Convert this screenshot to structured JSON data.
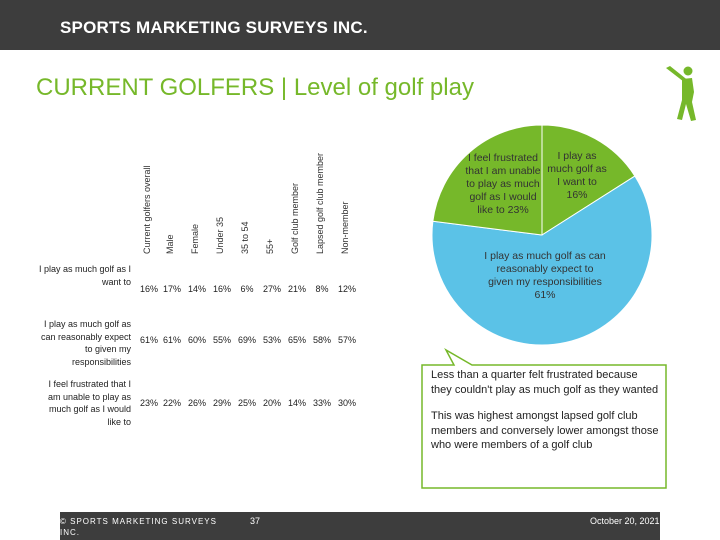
{
  "header": {
    "brand": "SPORTS MARKETING SURVEYS INC."
  },
  "title": "CURRENT GOLFERS  |  Level of golf play",
  "table": {
    "columns": [
      "Current golfers overall",
      "Male",
      "Female",
      "Under 35",
      "35 to 54",
      "55+",
      "Golf club member",
      "Lapsed golf club member",
      "Non-member"
    ],
    "rows": [
      {
        "label": "I play as much golf as I want to",
        "values": [
          "16%",
          "17%",
          "14%",
          "16%",
          "6%",
          "27%",
          "21%",
          "8%",
          "12%"
        ]
      },
      {
        "label": "I play as much golf as can reasonably expect to given my responsibilities",
        "values": [
          "61%",
          "61%",
          "60%",
          "55%",
          "69%",
          "53%",
          "65%",
          "58%",
          "57%"
        ]
      },
      {
        "label": "I feel frustrated that I am unable to play as much golf as I would like to",
        "values": [
          "23%",
          "22%",
          "26%",
          "29%",
          "25%",
          "20%",
          "14%",
          "33%",
          "30%"
        ]
      }
    ]
  },
  "chart_data": {
    "type": "pie",
    "categories": [
      "I play as much golf as I want to",
      "I play as much golf as can reasonably expect to given my responsibilities",
      "I feel frustrated that I am unable to play as much golf as I would like to"
    ],
    "values": [
      16,
      61,
      23
    ],
    "colors": [
      "#76b82a",
      "#5bc2e7",
      "#76b82a"
    ],
    "labels": [
      "I play as much golf as I want to 16%",
      "I play as much golf as can reasonably expect to given my responsibilities 61%",
      "I feel frustrated that I am unable to play as much golf as I would like to 23%"
    ]
  },
  "callout": {
    "p1": "Less than a quarter felt frustrated because they couldn't play as much golf as they wanted",
    "p2": "This was highest amongst lapsed golf club members and conversely lower amongst those who were members of a golf club"
  },
  "footer": {
    "copyright": "© SPORTS MARKETING SURVEYS INC.",
    "page": "37",
    "date": "October 20, 2021"
  },
  "colors": {
    "accent": "#76b82a",
    "blue": "#5bc2e7",
    "bar": "#3d3d3d"
  },
  "icons": [
    "golfer-icon"
  ]
}
